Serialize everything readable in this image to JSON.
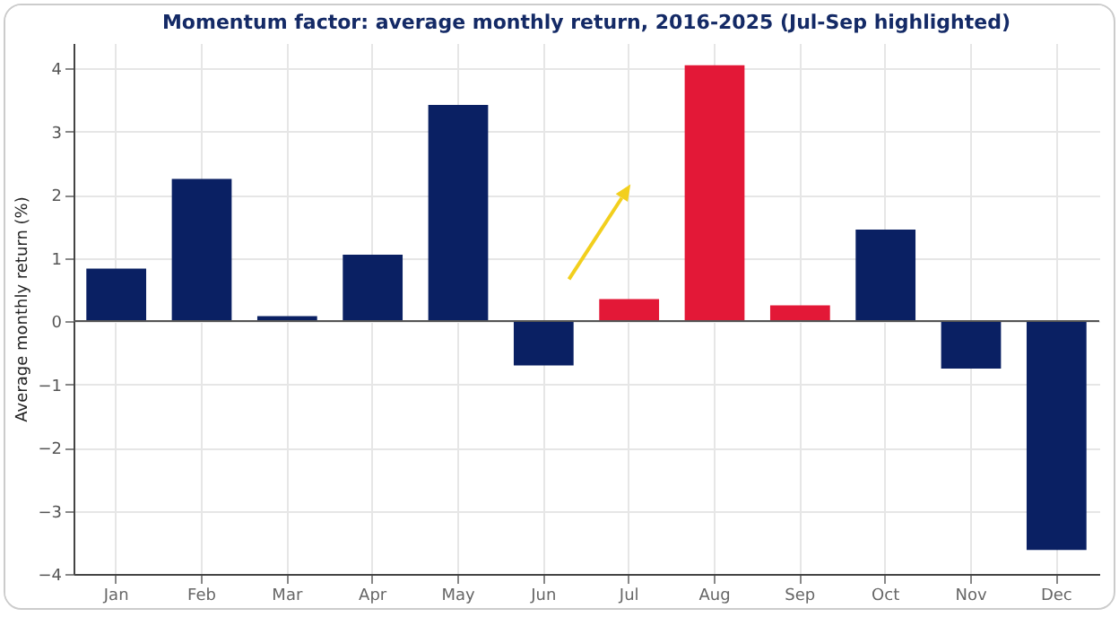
{
  "chart_data": {
    "type": "bar",
    "title": "Momentum factor: average monthly return, 2016-2025 (Jul-Sep highlighted)",
    "ylabel": "Average monthly return (%)",
    "categories": [
      "Jan",
      "Feb",
      "Mar",
      "Apr",
      "May",
      "Jun",
      "Jul",
      "Aug",
      "Sep",
      "Oct",
      "Nov",
      "Dec"
    ],
    "values": [
      0.83,
      2.25,
      0.08,
      1.05,
      3.42,
      -0.7,
      0.35,
      4.05,
      0.25,
      1.45,
      -0.75,
      -3.62
    ],
    "colors": [
      "#0a2063",
      "#0a2063",
      "#0a2063",
      "#0a2063",
      "#0a2063",
      "#0a2063",
      "#e31837",
      "#e31837",
      "#e31837",
      "#0a2063",
      "#0a2063",
      "#0a2063"
    ],
    "ylim": [
      -4,
      4.4
    ],
    "yticks": [
      -4,
      -3,
      -2,
      -1,
      0,
      1,
      2,
      3,
      4
    ],
    "grid": true,
    "ref_lines": [
      {
        "axis": "y",
        "value": 0,
        "color": "#555555"
      }
    ]
  }
}
